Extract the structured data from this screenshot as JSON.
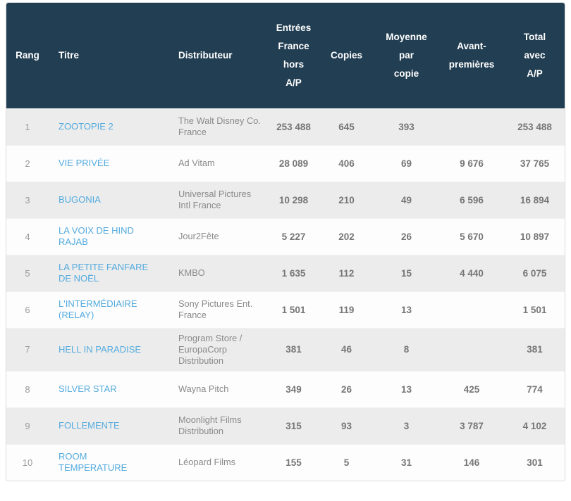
{
  "colors": {
    "header_bg": "#223e52",
    "header_text": "#ffffff",
    "row_odd_bg": "#ececec",
    "row_even_bg": "#fdfdfd",
    "title_link": "#54abde",
    "number_text": "#767676",
    "muted_text": "#8a8a8a"
  },
  "table": {
    "columns": [
      {
        "key": "rang",
        "label": "Rang"
      },
      {
        "key": "titre",
        "label": "Titre"
      },
      {
        "key": "dist",
        "label": "Distributeur"
      },
      {
        "key": "entrees",
        "label": "Entrées\nFrance\nhors\nA/P"
      },
      {
        "key": "copies",
        "label": "Copies"
      },
      {
        "key": "moyenne",
        "label": "Moyenne\npar\ncopie"
      },
      {
        "key": "avant",
        "label": "Avant-\npremières"
      },
      {
        "key": "total",
        "label": "Total\navec\nA/P"
      }
    ],
    "rows": [
      {
        "rang": "1",
        "titre": "ZOOTOPIE 2",
        "dist": "The Walt Disney Co. France",
        "entrees": "253 488",
        "copies": "645",
        "moyenne": "393",
        "avant": "",
        "total": "253 488"
      },
      {
        "rang": "2",
        "titre": "VIE PRIVÉE",
        "dist": "Ad Vitam",
        "entrees": "28 089",
        "copies": "406",
        "moyenne": "69",
        "avant": "9 676",
        "total": "37 765"
      },
      {
        "rang": "3",
        "titre": "BUGONIA",
        "dist": "Universal Pictures Intl France",
        "entrees": "10 298",
        "copies": "210",
        "moyenne": "49",
        "avant": "6 596",
        "total": "16 894"
      },
      {
        "rang": "4",
        "titre": "LA VOIX DE HIND RAJAB",
        "dist": "Jour2Fête",
        "entrees": "5 227",
        "copies": "202",
        "moyenne": "26",
        "avant": "5 670",
        "total": "10 897"
      },
      {
        "rang": "5",
        "titre": "LA PETITE FANFARE DE NOËL",
        "dist": "KMBO",
        "entrees": "1 635",
        "copies": "112",
        "moyenne": "15",
        "avant": "4 440",
        "total": "6 075"
      },
      {
        "rang": "6",
        "titre": "L'INTERMÉDIAIRE (RELAY)",
        "dist": "Sony Pictures Ent. France",
        "entrees": "1 501",
        "copies": "119",
        "moyenne": "13",
        "avant": "",
        "total": "1 501"
      },
      {
        "rang": "7",
        "titre": "HELL IN PARADISE",
        "dist": "Program Store / EuropaCorp Distribution",
        "entrees": "381",
        "copies": "46",
        "moyenne": "8",
        "avant": "",
        "total": "381"
      },
      {
        "rang": "8",
        "titre": "SILVER STAR",
        "dist": "Wayna Pitch",
        "entrees": "349",
        "copies": "26",
        "moyenne": "13",
        "avant": "425",
        "total": "774"
      },
      {
        "rang": "9",
        "titre": "FOLLEMENTE",
        "dist": "Moonlight Films Distribution",
        "entrees": "315",
        "copies": "93",
        "moyenne": "3",
        "avant": "3 787",
        "total": "4 102"
      },
      {
        "rang": "10",
        "titre": "ROOM TEMPERATURE",
        "dist": "Léopard Films",
        "entrees": "155",
        "copies": "5",
        "moyenne": "31",
        "avant": "146",
        "total": "301"
      }
    ]
  }
}
